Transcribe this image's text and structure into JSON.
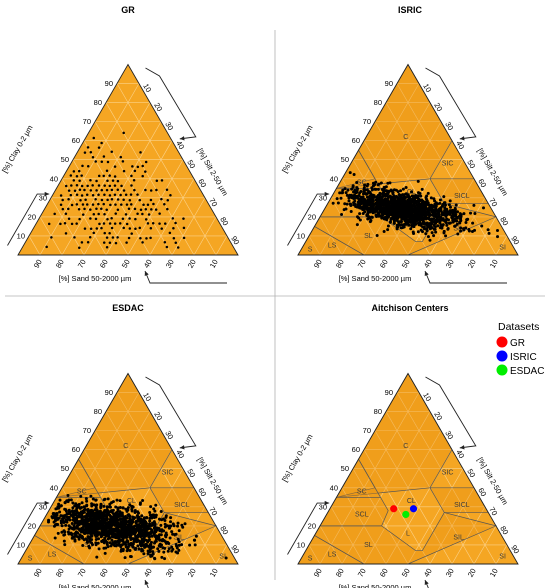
{
  "figure": {
    "separator_color": "#b0b0b0",
    "triangle_fill": "#f5a623",
    "grid_color": "#fbd28a",
    "class_line_color": "#555555",
    "ticks": [
      "10",
      "20",
      "30",
      "40",
      "50",
      "60",
      "70",
      "80",
      "90"
    ],
    "clay_axis_label": "[%] Clay 0-2 µm",
    "silt_axis_label": "[%] Silt 2-50 µm",
    "sand_axis_label": "[%] Sand 50-2000 µm"
  },
  "chart_data": [
    {
      "type": "scatter",
      "title": "GR",
      "show_classes": false,
      "cloud": {
        "kind": "lattice",
        "sand": [
          15,
          85
        ],
        "clay": [
          4,
          70
        ],
        "step": 2.5,
        "density": "broad"
      },
      "series": [
        {
          "color": "#000000"
        }
      ]
    },
    {
      "type": "scatter",
      "title": "ISRIC",
      "show_classes": true,
      "cloud": {
        "kind": "blob",
        "center": {
          "sand": 40,
          "clay": 24
        },
        "spread": {
          "sand": 11,
          "clay": 5
        }
      },
      "series": [
        {
          "color": "#000000"
        }
      ]
    },
    {
      "type": "scatter",
      "title": "ESDAC",
      "show_classes": true,
      "cloud": {
        "kind": "blob",
        "center": {
          "sand": 48,
          "clay": 20
        },
        "spread": {
          "sand": 13,
          "clay": 6
        }
      },
      "series": [
        {
          "color": "#000000"
        }
      ]
    },
    {
      "type": "scatter",
      "title": "Aitchison Centers",
      "show_classes": true,
      "legend": {
        "title": "Datasets",
        "position": "top-right"
      },
      "series": [
        {
          "name": "GR",
          "color": "#ff0000",
          "sand": 42,
          "clay": 29
        },
        {
          "name": "ISRIC",
          "color": "#0000ff",
          "sand": 33,
          "clay": 29
        },
        {
          "name": "ESDAC",
          "color": "#00ee00",
          "sand": 38,
          "clay": 26
        }
      ]
    }
  ],
  "texture_classes": {
    "labels": [
      "C",
      "SIC",
      "SC",
      "SICL",
      "CL",
      "SCL",
      "L",
      "SIL",
      "SL",
      "LS",
      "S",
      "SI"
    ],
    "polygons": [
      [
        [
          45,
          55
        ],
        [
          45,
          40
        ],
        [
          65,
          35
        ],
        [
          20,
          40
        ],
        [
          0,
          60
        ],
        [
          0,
          100
        ]
      ],
      [
        [
          0,
          40
        ],
        [
          20,
          40
        ],
        [
          20,
          27
        ],
        [
          0,
          27
        ]
      ],
      [
        [
          45,
          55
        ],
        [
          65,
          35
        ],
        [
          45,
          35
        ]
      ],
      [
        [
          45,
          35
        ],
        [
          65,
          35
        ],
        [
          80,
          20
        ],
        [
          52,
          20
        ],
        [
          45,
          28
        ]
      ],
      [
        [
          85,
          15
        ],
        [
          90,
          10
        ],
        [
          100,
          0
        ],
        [
          70,
          0
        ]
      ],
      [
        [
          0,
          20
        ],
        [
          20,
          27
        ],
        [
          40,
          7
        ],
        [
          43,
          7
        ],
        [
          52,
          20
        ],
        [
          80,
          20
        ],
        [
          85,
          15
        ],
        [
          70,
          0
        ],
        [
          50,
          0
        ]
      ]
    ]
  }
}
